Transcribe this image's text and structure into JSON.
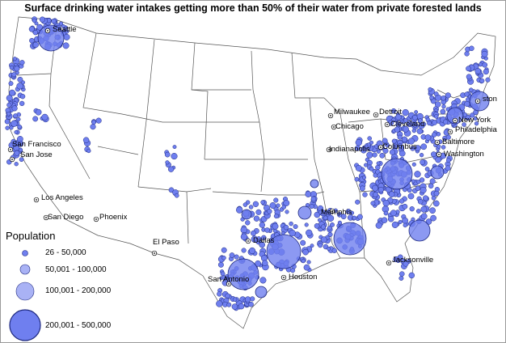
{
  "title": "Surface drinking water intakes getting more than 50% of their water from private forested lands",
  "colors": {
    "fill": "#6f7fef",
    "stroke": "#1f2a80",
    "land": "#ffffff",
    "border": "#555555"
  },
  "legend": {
    "title": "Population",
    "items": [
      {
        "label": "26 - 50,000",
        "size": "tiny"
      },
      {
        "label": "50,001 - 100,000",
        "size": "small"
      },
      {
        "label": "100,001 - 200,000",
        "size": "medium"
      },
      {
        "label": "200,001 - 500,000",
        "size": "large"
      }
    ]
  },
  "cities": [
    "Seattle",
    "San Francisco",
    "San Jose",
    "Los Angeles",
    "San Diego",
    "Phoenix",
    "El Paso",
    "Dallas",
    "Houston",
    "San Antonio",
    "Memphis",
    "Jacksonville",
    "Milwaukee",
    "Chicago",
    "Detroit",
    "Cleveland",
    "Indianapolis",
    "Columbus",
    "Boston",
    "New York",
    "Philadelphia",
    "Baltimore",
    "Washington"
  ],
  "visible_fragments": {
    "boston": "ston",
    "new_york": "New York"
  }
}
